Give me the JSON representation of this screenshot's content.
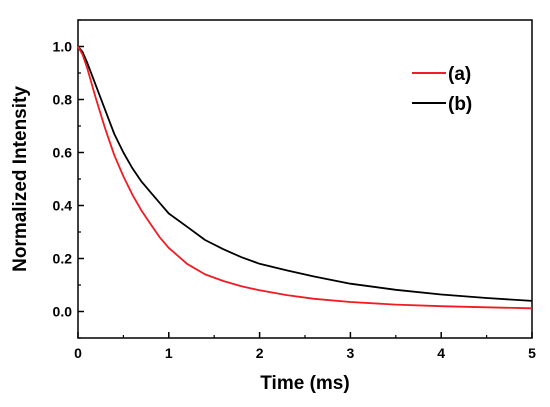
{
  "chart_data": {
    "type": "line",
    "title": "",
    "xlabel": "Time (ms)",
    "ylabel": "Normalized Intensity",
    "xlim": [
      0,
      5
    ],
    "ylim": [
      -0.1,
      1.1
    ],
    "xticks": [
      0,
      1,
      2,
      3,
      4,
      5
    ],
    "xtick_labels": [
      "0",
      "1",
      "2",
      "3",
      "4",
      "5"
    ],
    "yticks": [
      0.0,
      0.2,
      0.4,
      0.6,
      0.8,
      1.0
    ],
    "ytick_labels": [
      "0.0",
      "0.2",
      "0.4",
      "0.6",
      "0.8",
      "1.0"
    ],
    "grid": false,
    "legend_position": "top-right",
    "series": [
      {
        "name": "(a)",
        "color": "#ee1c24",
        "x": [
          0,
          0.05,
          0.1,
          0.2,
          0.3,
          0.4,
          0.5,
          0.6,
          0.7,
          0.8,
          0.9,
          1.0,
          1.2,
          1.4,
          1.6,
          1.8,
          2.0,
          2.3,
          2.6,
          3.0,
          3.5,
          4.0,
          4.5,
          5.0
        ],
        "y": [
          1.0,
          0.97,
          0.92,
          0.8,
          0.69,
          0.59,
          0.51,
          0.44,
          0.38,
          0.33,
          0.28,
          0.24,
          0.18,
          0.14,
          0.115,
          0.095,
          0.08,
          0.062,
          0.048,
          0.036,
          0.026,
          0.02,
          0.016,
          0.012
        ]
      },
      {
        "name": "(b)",
        "color": "#000000",
        "x": [
          0,
          0.05,
          0.1,
          0.2,
          0.3,
          0.4,
          0.5,
          0.6,
          0.7,
          0.8,
          0.9,
          1.0,
          1.2,
          1.4,
          1.6,
          1.8,
          2.0,
          2.3,
          2.6,
          3.0,
          3.5,
          4.0,
          4.5,
          5.0
        ],
        "y": [
          1.0,
          0.98,
          0.94,
          0.85,
          0.76,
          0.67,
          0.6,
          0.54,
          0.49,
          0.45,
          0.41,
          0.37,
          0.32,
          0.27,
          0.235,
          0.205,
          0.18,
          0.155,
          0.132,
          0.105,
          0.082,
          0.064,
          0.051,
          0.04
        ]
      }
    ]
  }
}
